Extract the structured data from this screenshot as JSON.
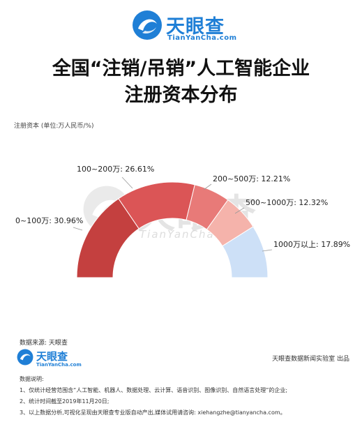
{
  "brand": {
    "name": "天眼查",
    "domain": "TianYanCha.com"
  },
  "title": {
    "line1": "全国“注销/吊销”人工智能企业",
    "line2": "注册资本分布"
  },
  "unit_note": "注册资本 (单位:万人民币/%)",
  "watermark": {
    "name": "天眼查",
    "domain": "TianYanCha.com"
  },
  "source": "数据来源: 天眼查",
  "producer": "天眼查数据新闻实验室 出品",
  "notes": {
    "heading": "数据说明:",
    "items": [
      "1、仅统计经营范围含“人工智能、机器人、数据处理、云计算、语音识别、图像识别、自然语言处理”的企业;",
      "2、统计时间截至2019年11月20日;",
      "3、以上数据分析,可视化呈现由天眼查专业版自动产出,媒体试用请咨询: xiehangzhe@tianyancha.com。"
    ]
  },
  "colors": {
    "brand": "#1f7fd6",
    "segments": [
      "#c4403f",
      "#db5556",
      "#e87a78",
      "#f5b3ab",
      "#cde0f7"
    ]
  },
  "chart_data": {
    "type": "pie",
    "subtype": "half-donut",
    "slices": [
      {
        "label": "0~100万",
        "value": 30.96,
        "text": "0~100万: 30.96%"
      },
      {
        "label": "100~200万",
        "value": 26.61,
        "text": "100~200万: 26.61%"
      },
      {
        "label": "200~500万",
        "value": 12.21,
        "text": "200~500万: 12.21%"
      },
      {
        "label": "500~1000万",
        "value": 12.32,
        "text": "500~1000万: 12.32%"
      },
      {
        "label": "1000万以上",
        "value": 17.89,
        "text": "1000万以上: 17.89%"
      }
    ]
  }
}
